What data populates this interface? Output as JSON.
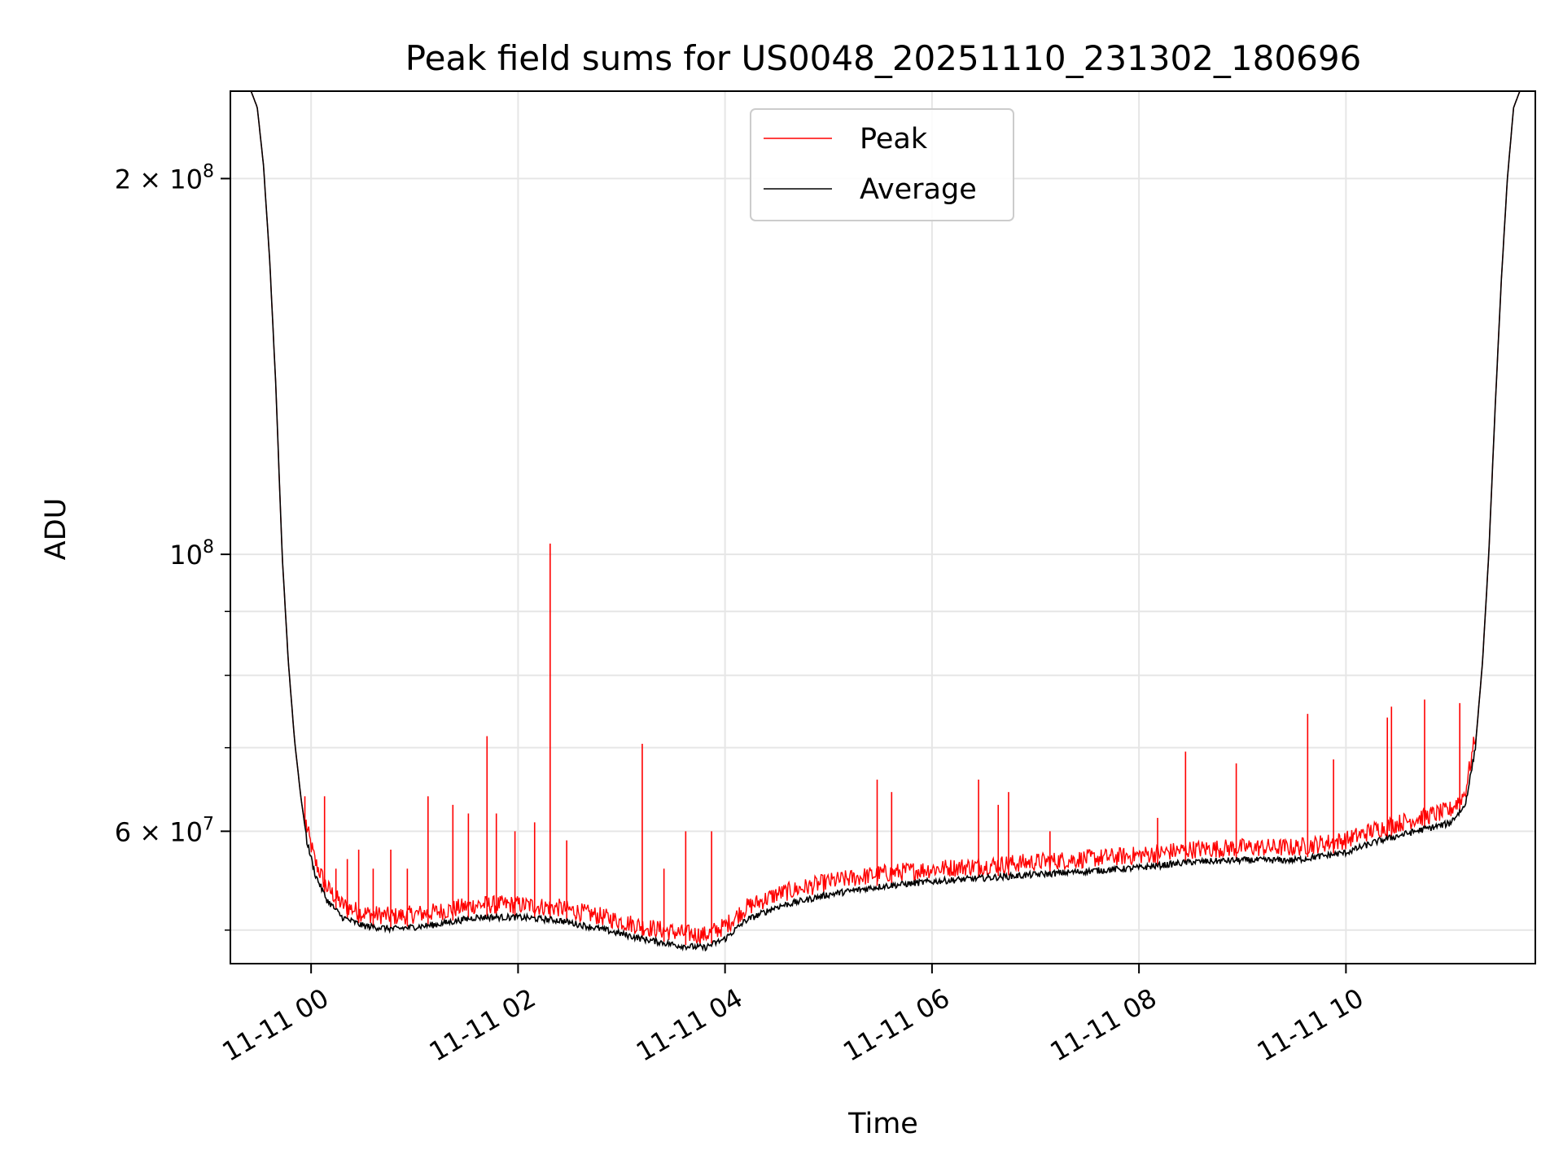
{
  "chart_data": {
    "type": "line",
    "title": "Peak field sums for US0048_20251110_231302_180696",
    "xlabel": "Time",
    "ylabel": "ADU",
    "yscale": "log",
    "xlim_hours": [
      -0.78,
      11.83
    ],
    "ylim": [
      47000000,
      235000000
    ],
    "grid": true,
    "legend_position": "top-center",
    "x_ticks": [
      {
        "hour": 0,
        "label": "11-11 00"
      },
      {
        "hour": 2,
        "label": "11-11 02"
      },
      {
        "hour": 4,
        "label": "11-11 04"
      },
      {
        "hour": 6,
        "label": "11-11 06"
      },
      {
        "hour": 8,
        "label": "11-11 08"
      },
      {
        "hour": 10,
        "label": "11-11 10"
      }
    ],
    "y_major_ticks": [
      {
        "value": 60000000,
        "mantissa": "6",
        "base": "10",
        "exp": "7"
      },
      {
        "value": 100000000,
        "mantissa": "",
        "base": "10",
        "exp": "8"
      },
      {
        "value": 200000000,
        "mantissa": "2",
        "base": "10",
        "exp": "8"
      }
    ],
    "y_minor_ticks": [
      50000000,
      70000000,
      80000000,
      90000000
    ],
    "series": [
      {
        "name": "Peak",
        "color": "#ff0000",
        "spikes": [
          [
            -0.06,
            64000000
          ],
          [
            0.13,
            64000000
          ],
          [
            0.24,
            56000000
          ],
          [
            0.35,
            57000000
          ],
          [
            0.46,
            58000000
          ],
          [
            0.6,
            56000000
          ],
          [
            0.77,
            58000000
          ],
          [
            0.93,
            56000000
          ],
          [
            1.13,
            64000000
          ],
          [
            1.37,
            63000000
          ],
          [
            1.52,
            62000000
          ],
          [
            1.7,
            71500000
          ],
          [
            1.79,
            62000000
          ],
          [
            1.97,
            60000000
          ],
          [
            2.16,
            61000000
          ],
          [
            2.31,
            102000000
          ],
          [
            2.47,
            59000000
          ],
          [
            3.2,
            70500000
          ],
          [
            3.41,
            56000000
          ],
          [
            3.62,
            60000000
          ],
          [
            3.87,
            60000000
          ],
          [
            5.47,
            66000000
          ],
          [
            5.61,
            64500000
          ],
          [
            6.45,
            66000000
          ],
          [
            6.64,
            63000000
          ],
          [
            6.74,
            64500000
          ],
          [
            7.14,
            60000000
          ],
          [
            8.18,
            61500000
          ],
          [
            8.45,
            69500000
          ],
          [
            8.94,
            68000000
          ],
          [
            9.63,
            74500000
          ],
          [
            9.88,
            68500000
          ],
          [
            10.4,
            74000000
          ],
          [
            10.44,
            75500000
          ],
          [
            10.76,
            76500000
          ],
          [
            11.1,
            76000000
          ]
        ]
      },
      {
        "name": "Average",
        "color": "#000000",
        "points": [
          [
            -0.78,
            235000000
          ],
          [
            -0.58,
            235000000
          ],
          [
            -0.52,
            228000000
          ],
          [
            -0.46,
            205000000
          ],
          [
            -0.4,
            172000000
          ],
          [
            -0.34,
            136000000
          ],
          [
            -0.28,
            100000000
          ],
          [
            -0.22,
            82000000
          ],
          [
            -0.16,
            71000000
          ],
          [
            -0.1,
            64000000
          ],
          [
            -0.04,
            59000000
          ],
          [
            0.04,
            55500000
          ],
          [
            0.15,
            53000000
          ],
          [
            0.3,
            51300000
          ],
          [
            0.5,
            50500000
          ],
          [
            0.8,
            50200000
          ],
          [
            1.2,
            50600000
          ],
          [
            1.6,
            51300000
          ],
          [
            2.0,
            51300000
          ],
          [
            2.4,
            51000000
          ],
          [
            2.8,
            50200000
          ],
          [
            3.2,
            49300000
          ],
          [
            3.55,
            48700000
          ],
          [
            3.8,
            48500000
          ],
          [
            4.0,
            49300000
          ],
          [
            4.2,
            51000000
          ],
          [
            4.5,
            52300000
          ],
          [
            5.0,
            53500000
          ],
          [
            5.5,
            54300000
          ],
          [
            6.0,
            54800000
          ],
          [
            7.0,
            55500000
          ],
          [
            8.0,
            56200000
          ],
          [
            8.5,
            56800000
          ],
          [
            9.0,
            57000000
          ],
          [
            9.5,
            57000000
          ],
          [
            10.0,
            57800000
          ],
          [
            10.3,
            59000000
          ],
          [
            10.7,
            60200000
          ],
          [
            11.0,
            61000000
          ],
          [
            11.15,
            63000000
          ],
          [
            11.25,
            70000000
          ],
          [
            11.32,
            82000000
          ],
          [
            11.38,
            100000000
          ],
          [
            11.44,
            130000000
          ],
          [
            11.5,
            165000000
          ],
          [
            11.56,
            200000000
          ],
          [
            11.62,
            228000000
          ],
          [
            11.68,
            235000000
          ],
          [
            11.83,
            235000000
          ]
        ]
      }
    ]
  }
}
